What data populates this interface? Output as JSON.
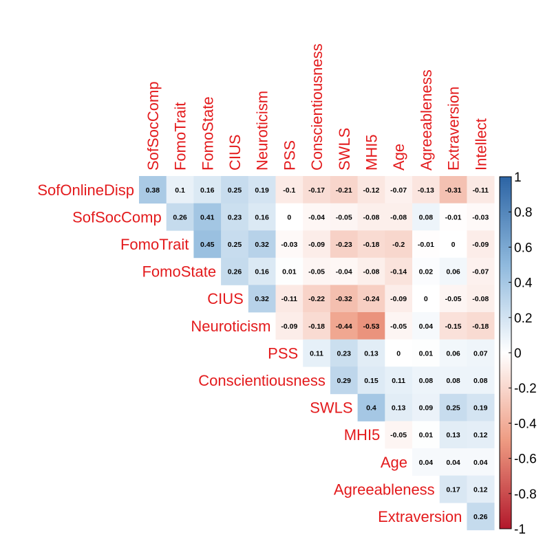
{
  "chart_data": {
    "type": "heatmap",
    "title": "",
    "layout": "upper-triangle",
    "rows": [
      "SofOnlineDisp",
      "SofSocComp",
      "FomoTrait",
      "FomoState",
      "CIUS",
      "Neuroticism",
      "PSS",
      "Conscientiousness",
      "SWLS",
      "MHI5",
      "Age",
      "Agreeableness",
      "Extraversion"
    ],
    "columns": [
      "SofSocComp",
      "FomoTrait",
      "FomoState",
      "CIUS",
      "Neuroticism",
      "PSS",
      "Conscientiousness",
      "SWLS",
      "MHI5",
      "Age",
      "Agreeableness",
      "Extraversion",
      "Intellect"
    ],
    "values": [
      [
        0.38,
        0.1,
        0.16,
        0.25,
        0.19,
        -0.1,
        -0.17,
        -0.21,
        -0.12,
        -0.07,
        -0.13,
        -0.31,
        -0.11
      ],
      [
        null,
        0.26,
        0.41,
        0.23,
        0.16,
        0,
        -0.04,
        -0.05,
        -0.08,
        -0.08,
        0.08,
        -0.01,
        -0.03
      ],
      [
        null,
        null,
        0.45,
        0.25,
        0.32,
        -0.03,
        -0.09,
        -0.23,
        -0.18,
        -0.2,
        -0.01,
        0,
        -0.09
      ],
      [
        null,
        null,
        null,
        0.26,
        0.16,
        0.01,
        -0.05,
        -0.04,
        -0.08,
        -0.14,
        0.02,
        0.06,
        -0.07
      ],
      [
        null,
        null,
        null,
        null,
        0.32,
        -0.11,
        -0.22,
        -0.32,
        -0.24,
        -0.09,
        0,
        -0.05,
        -0.08
      ],
      [
        null,
        null,
        null,
        null,
        null,
        -0.09,
        -0.18,
        -0.44,
        -0.53,
        -0.05,
        0.04,
        -0.15,
        -0.18
      ],
      [
        null,
        null,
        null,
        null,
        null,
        null,
        0.11,
        0.23,
        0.13,
        0,
        0.01,
        0.06,
        0.07
      ],
      [
        null,
        null,
        null,
        null,
        null,
        null,
        null,
        0.29,
        0.15,
        0.11,
        0.08,
        0.08,
        0.08
      ],
      [
        null,
        null,
        null,
        null,
        null,
        null,
        null,
        null,
        0.4,
        0.13,
        0.09,
        0.25,
        0.19
      ],
      [
        null,
        null,
        null,
        null,
        null,
        null,
        null,
        null,
        null,
        -0.05,
        0.01,
        0.13,
        0.12
      ],
      [
        null,
        null,
        null,
        null,
        null,
        null,
        null,
        null,
        null,
        null,
        0.04,
        0.04,
        0.04
      ],
      [
        null,
        null,
        null,
        null,
        null,
        null,
        null,
        null,
        null,
        null,
        null,
        0.17,
        0.12
      ],
      [
        null,
        null,
        null,
        null,
        null,
        null,
        null,
        null,
        null,
        null,
        null,
        null,
        0.26
      ]
    ],
    "color_scale": {
      "range": [
        -1,
        1
      ],
      "low_color": "#b2182b",
      "mid_color": "#ffffff",
      "high_color": "#2166ac",
      "stops": [
        {
          "v": -1,
          "c": "#b2182b"
        },
        {
          "v": -0.5,
          "c": "#ee9b82"
        },
        {
          "v": 0,
          "c": "#ffffff"
        },
        {
          "v": 0.5,
          "c": "#8fb9dd"
        },
        {
          "v": 1,
          "c": "#2c64a4"
        }
      ],
      "ticks": [
        "1",
        "0.8",
        "0.6",
        "0.4",
        "0.2",
        "0",
        "-0.2",
        "-0.4",
        "-0.6",
        "-0.8",
        "-1"
      ]
    },
    "label_color": "#e31a1c",
    "legend_position": "right"
  }
}
